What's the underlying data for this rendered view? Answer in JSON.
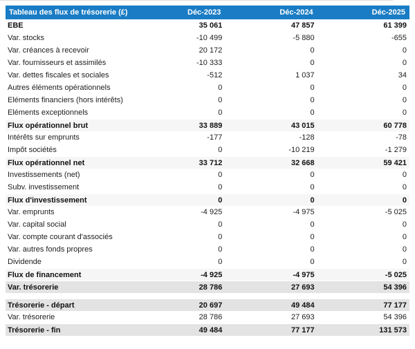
{
  "colors": {
    "header_bg": "#1a7cc4",
    "subtotal_row_bg": "#f6f6f6",
    "total_row_bg": "#e3e3e3"
  },
  "table": {
    "title": "Tableau des flux de trésorerie (£)",
    "columns": [
      "Déc-2023",
      "Déc-2024",
      "Déc-2025"
    ],
    "rows": [
      {
        "label": "EBE",
        "values": [
          "35 061",
          "47 857",
          "61 399"
        ],
        "style": "bold"
      },
      {
        "label": "Var. stocks",
        "values": [
          "-10 499",
          "-5 880",
          "-655"
        ],
        "style": "normal"
      },
      {
        "label": "Var. créances à recevoir",
        "values": [
          "20 172",
          "0",
          "0"
        ],
        "style": "normal"
      },
      {
        "label": "Var. fournisseurs et assimilés",
        "values": [
          "-10 333",
          "0",
          "0"
        ],
        "style": "normal"
      },
      {
        "label": "Var. dettes fiscales et sociales",
        "values": [
          "-512",
          "1 037",
          "34"
        ],
        "style": "normal"
      },
      {
        "label": "Autres éléments opérationnels",
        "values": [
          "0",
          "0",
          "0"
        ],
        "style": "normal"
      },
      {
        "label": "Eléments financiers (hors intérêts)",
        "values": [
          "0",
          "0",
          "0"
        ],
        "style": "normal"
      },
      {
        "label": "Eléments exceptionnels",
        "values": [
          "0",
          "0",
          "0"
        ],
        "style": "normal"
      },
      {
        "label": "Flux opérationnel brut",
        "values": [
          "33 889",
          "43 015",
          "60 778"
        ],
        "style": "subtotal"
      },
      {
        "label": "Intérêts sur emprunts",
        "values": [
          "-177",
          "-128",
          "-78"
        ],
        "style": "normal"
      },
      {
        "label": "Impôt sociétés",
        "values": [
          "0",
          "-10 219",
          "-1 279"
        ],
        "style": "normal"
      },
      {
        "label": "Flux opérationnel net",
        "values": [
          "33 712",
          "32 668",
          "59 421"
        ],
        "style": "subtotal"
      },
      {
        "label": "Investissements (net)",
        "values": [
          "0",
          "0",
          "0"
        ],
        "style": "normal"
      },
      {
        "label": "Subv. investissement",
        "values": [
          "0",
          "0",
          "0"
        ],
        "style": "normal"
      },
      {
        "label": "Flux d'investissement",
        "values": [
          "0",
          "0",
          "0"
        ],
        "style": "subtotal"
      },
      {
        "label": "Var. emprunts",
        "values": [
          "-4 925",
          "-4 975",
          "-5 025"
        ],
        "style": "normal"
      },
      {
        "label": "Var. capital social",
        "values": [
          "0",
          "0",
          "0"
        ],
        "style": "normal"
      },
      {
        "label": "Var. compte courant d'associés",
        "values": [
          "0",
          "0",
          "0"
        ],
        "style": "normal"
      },
      {
        "label": "Var. autres fonds propres",
        "values": [
          "0",
          "0",
          "0"
        ],
        "style": "normal"
      },
      {
        "label": "Dividende",
        "values": [
          "0",
          "0",
          "0"
        ],
        "style": "normal"
      },
      {
        "label": "Flux de financement",
        "values": [
          "-4 925",
          "-4 975",
          "-5 025"
        ],
        "style": "subtotal"
      },
      {
        "label": "Var. trésorerie",
        "values": [
          "28 786",
          "27 693",
          "54 396"
        ],
        "style": "total"
      },
      {
        "style": "spacer"
      },
      {
        "label": "Trésorerie - départ",
        "values": [
          "20 697",
          "49 484",
          "77 177"
        ],
        "style": "total"
      },
      {
        "label": "Var. trésorerie",
        "values": [
          "28 786",
          "27 693",
          "54 396"
        ],
        "style": "normal"
      },
      {
        "label": "Trésorerie - fin",
        "values": [
          "49 484",
          "77 177",
          "131 573"
        ],
        "style": "total"
      }
    ]
  }
}
